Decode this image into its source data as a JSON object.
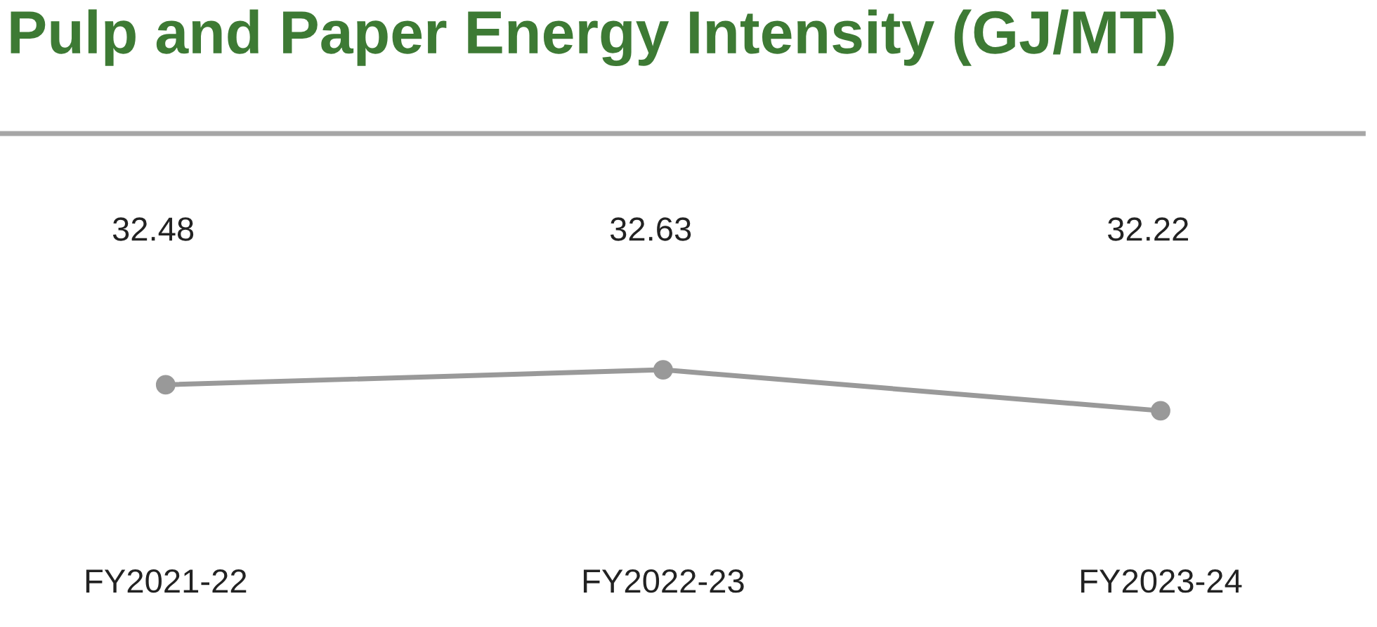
{
  "chart_data": {
    "type": "line",
    "title": "Pulp and Paper Energy Intensity (GJ/MT)",
    "categories": [
      "FY2021-22",
      "FY2022-23",
      "FY2023-24"
    ],
    "series": [
      {
        "color": "#999999",
        "values": [
          32.48,
          32.63,
          32.22
        ]
      }
    ],
    "marker": "circle",
    "line_style": "solid",
    "data_labels": true,
    "grid": false
  }
}
